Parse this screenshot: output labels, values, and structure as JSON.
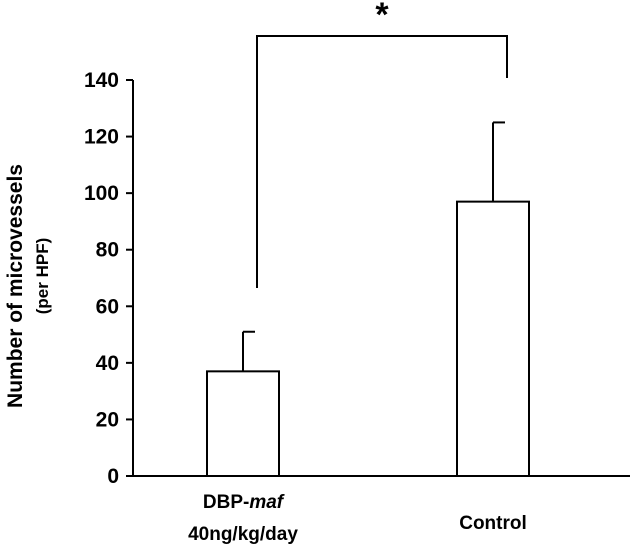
{
  "chart_data": {
    "type": "bar",
    "categories": [
      {
        "line1": "DBP-",
        "line1_italic": "maf",
        "line2": "40ng/kg/day"
      },
      {
        "line1": "Control",
        "line1_italic": "",
        "line2": ""
      }
    ],
    "values": [
      37,
      97
    ],
    "error_upper": [
      51,
      125
    ],
    "ylabel": "Number of microvessels",
    "ylabel_sub": "(per HPF)",
    "xlabel": "",
    "title": "",
    "ylim": [
      0,
      140
    ],
    "yticks": [
      0,
      20,
      40,
      60,
      80,
      100,
      120,
      140
    ],
    "significance": {
      "symbol": "*",
      "between": [
        0,
        1
      ]
    },
    "grid": false,
    "legend": "none",
    "bar_fill": "#ffffff",
    "stroke_color": "#000000"
  }
}
